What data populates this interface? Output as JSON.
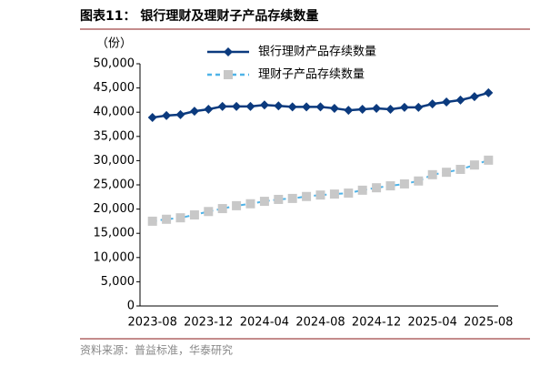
{
  "chart_data": {
    "type": "line",
    "title": "图表11： 银行理财及理财子产品存续数量",
    "y_label": "（份）",
    "source": "资料来源：普益标准，华泰研究",
    "categories": [
      "2023-08",
      null,
      null,
      null,
      "2023-12",
      null,
      null,
      null,
      "2024-04",
      null,
      null,
      null,
      "2024-08",
      null,
      null,
      null,
      "2024-12",
      null,
      null,
      null,
      "2025-04",
      null,
      null,
      null,
      "2025-08"
    ],
    "series": [
      {
        "name": "银行理财产品存续数量",
        "color": "#0b3a7e",
        "marker": "diamond",
        "values": [
          38900,
          39300,
          39500,
          40200,
          40600,
          41200,
          41200,
          41200,
          41500,
          41300,
          41100,
          41100,
          41100,
          40800,
          40400,
          40600,
          40800,
          40600,
          41000,
          41000,
          41700,
          42100,
          42500,
          43200,
          44000
        ]
      },
      {
        "name": "理财子产品存续数量",
        "color": "#4fb3e8",
        "marker_color": "#c8c8c8",
        "marker": "square",
        "dashed": true,
        "values": [
          17500,
          17900,
          18200,
          18800,
          19500,
          20100,
          20700,
          21100,
          21600,
          22000,
          22200,
          22600,
          22900,
          23100,
          23300,
          23900,
          24400,
          24800,
          25200,
          25800,
          27100,
          27600,
          28200,
          29100,
          30100
        ]
      }
    ],
    "ylim": [
      0,
      50000
    ],
    "yticks": [
      0,
      {
        "value": 5000,
        "label": "5,000"
      },
      {
        "value": 10000,
        "label": "10,000"
      },
      {
        "value": 15000,
        "label": "15,000"
      },
      {
        "value": 20000,
        "label": "20,000"
      },
      {
        "value": 25000,
        "label": "25,000"
      },
      {
        "value": 30000,
        "label": "30,000"
      },
      {
        "value": 35000,
        "label": "35,000"
      },
      {
        "value": 40000,
        "label": "40,000"
      },
      {
        "value": 45000,
        "label": "45,000"
      },
      {
        "value": 50000,
        "label": "50,000"
      }
    ],
    "grid": false
  }
}
